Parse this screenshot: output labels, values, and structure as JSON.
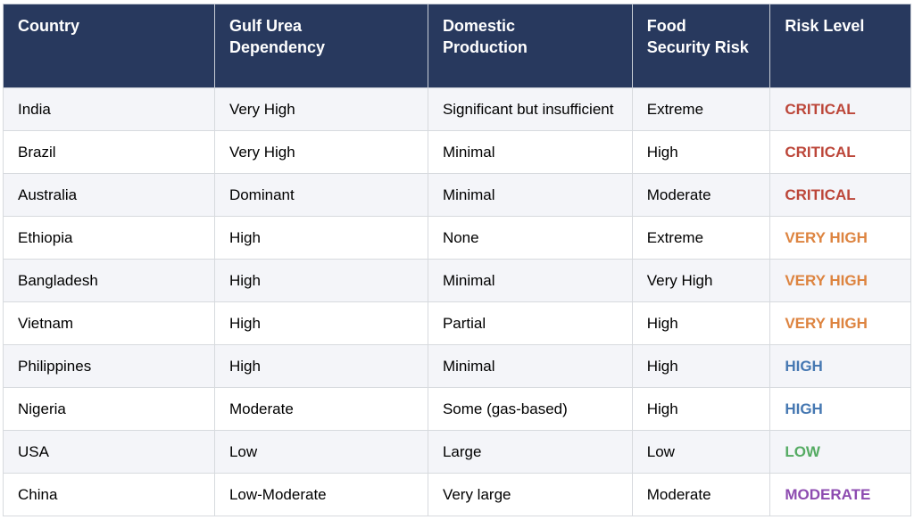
{
  "chart_data": {
    "type": "table",
    "columns": [
      "Country",
      "Gulf Urea Dependency",
      "Domestic Production",
      "Food Security Risk",
      "Risk Level"
    ],
    "rows": [
      [
        "India",
        "Very High",
        "Significant but insufficient",
        "Extreme",
        "CRITICAL"
      ],
      [
        "Brazil",
        "Very High",
        "Minimal",
        "High",
        "CRITICAL"
      ],
      [
        "Australia",
        "Dominant",
        "Minimal",
        "Moderate",
        "CRITICAL"
      ],
      [
        "Ethiopia",
        "High",
        "None",
        "Extreme",
        "VERY HIGH"
      ],
      [
        "Bangladesh",
        "High",
        "Minimal",
        "Very High",
        "VERY HIGH"
      ],
      [
        "Vietnam",
        "High",
        "Partial",
        "High",
        "VERY HIGH"
      ],
      [
        "Philippines",
        "High",
        "Minimal",
        "High",
        "HIGH"
      ],
      [
        "Nigeria",
        "Moderate",
        "Some (gas-based)",
        "High",
        "HIGH"
      ],
      [
        "USA",
        "Low",
        "Large",
        "Low",
        "LOW"
      ],
      [
        "China",
        "Low-Moderate",
        "Very large",
        "Moderate",
        "MODERATE"
      ]
    ],
    "row_risk_colors": [
      "#bc4639",
      "#bc4639",
      "#bc4639",
      "#dd8440",
      "#dd8440",
      "#dd8440",
      "#4678b2",
      "#4678b2",
      "#55ab63",
      "#8d4bb0"
    ],
    "risk_level_colors": {
      "CRITICAL": "#bc4639",
      "VERY HIGH": "#dd8440",
      "HIGH": "#4678b2",
      "LOW": "#55ab63",
      "MODERATE": "#8d4bb0"
    },
    "layout": {
      "header_bg": "#28395e",
      "header_text": "#ffffff",
      "row_bg": "#ffffff",
      "row_alt_bg": "#f4f5f9",
      "border": "#d7dade",
      "body_text": "#000000",
      "grid": "on",
      "legend": "none"
    }
  }
}
